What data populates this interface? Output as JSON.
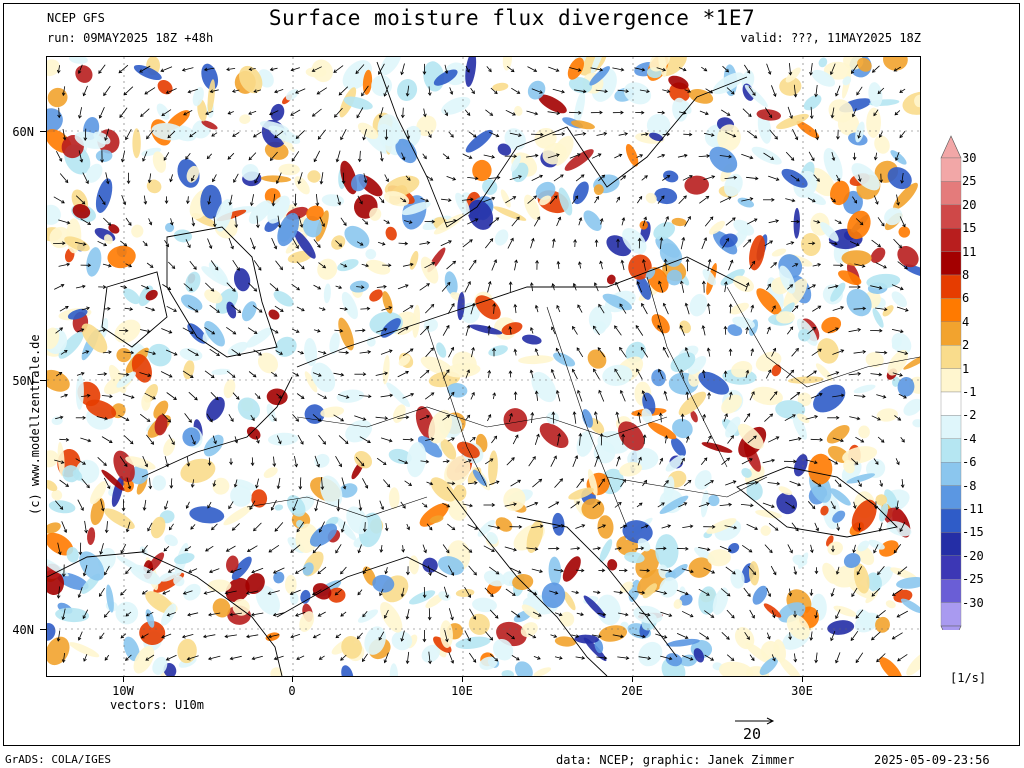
{
  "header": {
    "model": "NCEP GFS",
    "run": "run: 09MAY2025 18Z +48h",
    "title": "Surface moisture flux divergence *1E7",
    "valid": "valid: ???, 11MAY2025 18Z"
  },
  "axes": {
    "lat_labels": [
      {
        "label": "60N",
        "value": 60
      },
      {
        "label": "50N",
        "value": 50
      },
      {
        "label": "40N",
        "value": 40
      }
    ],
    "lon_labels": [
      {
        "label": "10W",
        "value": -10
      },
      {
        "label": "0",
        "value": 0
      },
      {
        "label": "10E",
        "value": 10
      },
      {
        "label": "20E",
        "value": 20
      },
      {
        "label": "30E",
        "value": 30
      }
    ],
    "lon_range": [
      -14.5,
      37
    ],
    "lat_range": [
      37.9,
      63
    ]
  },
  "colorbar": {
    "levels": [
      "30",
      "25",
      "20",
      "15",
      "11",
      "8",
      "6",
      "4",
      "2",
      "1",
      "-1",
      "-2",
      "-4",
      "-6",
      "-8",
      "-11",
      "-15",
      "-20",
      "-25",
      "-30"
    ],
    "colors": [
      "#f2a7a7",
      "#e47b7b",
      "#cf4848",
      "#b81e1e",
      "#a30000",
      "#e63c00",
      "#ff7a00",
      "#f2a32e",
      "#f9dc8c",
      "#fff6cf",
      "#ffffff",
      "#dff6fb",
      "#b5e6f2",
      "#8bc6ee",
      "#5b97e2",
      "#2f5cc8",
      "#242ea6",
      "#3c37b5",
      "#6a5ed6",
      "#a99af0"
    ],
    "unit": "[1/s]"
  },
  "vectors": {
    "label": "vectors: U10m",
    "reference": "20",
    "color": "#000000"
  },
  "footer": {
    "grads": "GrADS: COLA/IGES",
    "credit": "data: NCEP; graphic: Janek Zimmer",
    "timestamp": "2025-05-09-23:56",
    "copyright": "(c) www.modellzentrale.de"
  }
}
